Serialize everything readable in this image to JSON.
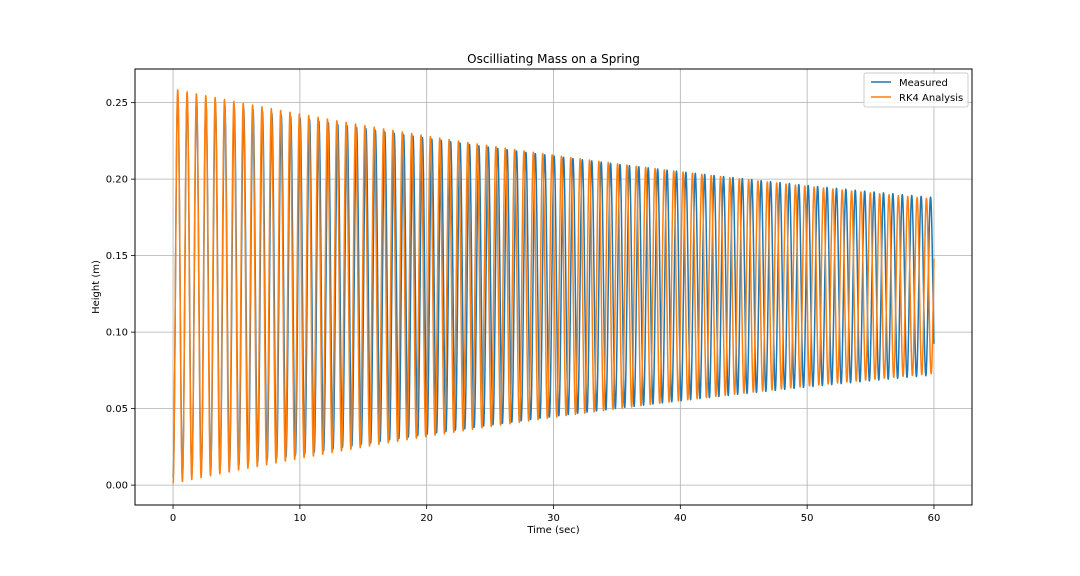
{
  "chart_data": {
    "type": "line",
    "title": "Oscilliating Mass on a Spring",
    "xlabel": "Time (sec)",
    "ylabel": "Height (m)",
    "xlim": [
      -3,
      63
    ],
    "ylim": [
      -0.013,
      0.272
    ],
    "xticks": [
      "0",
      "10",
      "20",
      "30",
      "40",
      "50",
      "60"
    ],
    "yticks": [
      "0.00",
      "0.05",
      "0.10",
      "0.15",
      "0.20",
      "0.25"
    ],
    "grid": true,
    "legend_position": "top-right",
    "series": [
      {
        "name": "Measured",
        "color": "#1f77b4",
        "x_range": [
          0,
          60
        ],
        "period": 0.742,
        "center": 0.13,
        "amplitude_start": 0.125,
        "amplitude_end": 0.058,
        "phase_offset": 0.0
      },
      {
        "name": "RK4 Analysis",
        "color": "#ff7f0e",
        "x_range": [
          0,
          60
        ],
        "period": 0.738,
        "center": 0.13,
        "amplitude_start": 0.129,
        "amplitude_end": 0.057,
        "phase_offset": 0.0
      }
    ]
  }
}
